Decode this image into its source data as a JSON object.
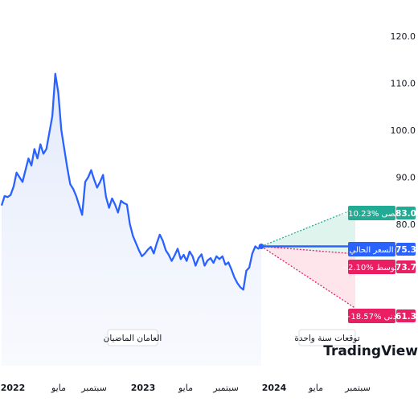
{
  "chart_data": {
    "type": "line",
    "title": "",
    "xlabel": "",
    "ylabel": "",
    "ylim": [
      55,
      125
    ],
    "y_ticks": [
      "120.0",
      "110.0",
      "100.0",
      "90.0",
      "80.0"
    ],
    "x_ticks": [
      "2022",
      "مايو",
      "سبتمبر",
      "2023",
      "مايو",
      "سبتمبر",
      "2024",
      "مايو",
      "سبتمبر"
    ],
    "x_tick_years": [
      "2022",
      "2023",
      "2024"
    ],
    "history_label": "العامان الماضيان",
    "forecast_label": "توقعات سنة واحدة",
    "watermark": "TradingView",
    "colors": {
      "line": "#2962ff",
      "area": "#e3ebfb",
      "high": "#22ab94",
      "current": "#2962ff",
      "average": "#e91e63",
      "low": "#e91e63"
    },
    "series": [
      {
        "values": [
          84,
          86,
          85.8,
          86.2,
          88,
          91,
          90,
          89,
          91.5,
          94,
          92.5,
          96,
          94,
          97,
          95,
          96,
          99.5,
          103,
          112,
          108,
          100,
          96,
          92,
          88.5,
          87.5,
          86,
          84,
          82,
          89,
          90,
          91.5,
          89.5,
          87.8,
          89,
          90.5,
          85.8,
          83.5,
          85.5,
          84.2,
          82.5,
          85,
          84.5,
          84.2,
          80,
          77.5,
          76,
          74.5,
          73.2,
          73.8,
          74.6,
          75.2,
          73.8,
          76,
          77.8,
          76.5,
          74.5,
          73.5,
          72.2,
          73.4,
          74.8,
          72.6,
          73.5,
          72.2,
          74.2,
          73.2,
          71.2,
          72.8,
          73.6,
          71.2,
          72.3,
          72.8,
          71.8,
          73.2,
          72.6,
          73.2,
          71.4,
          71.9,
          70.4,
          68.7,
          67.5,
          66.6,
          66.1,
          70.1,
          70.8,
          73.8,
          75.3,
          74.8,
          75.3
        ]
      }
    ],
    "forecast": {
      "current": {
        "label": "السعر الحالي",
        "value": 75.3,
        "price": "75.3"
      },
      "high": {
        "label": "أقصى",
        "change": "+10.23%",
        "value": 83.0,
        "price": "83.0"
      },
      "average": {
        "label": "متوسط",
        "change": "−2.10%",
        "value": 73.7,
        "price": "73.7"
      },
      "low": {
        "label": "أدنى",
        "change": "−18.57%",
        "value": 61.3,
        "price": "61.3"
      }
    }
  }
}
